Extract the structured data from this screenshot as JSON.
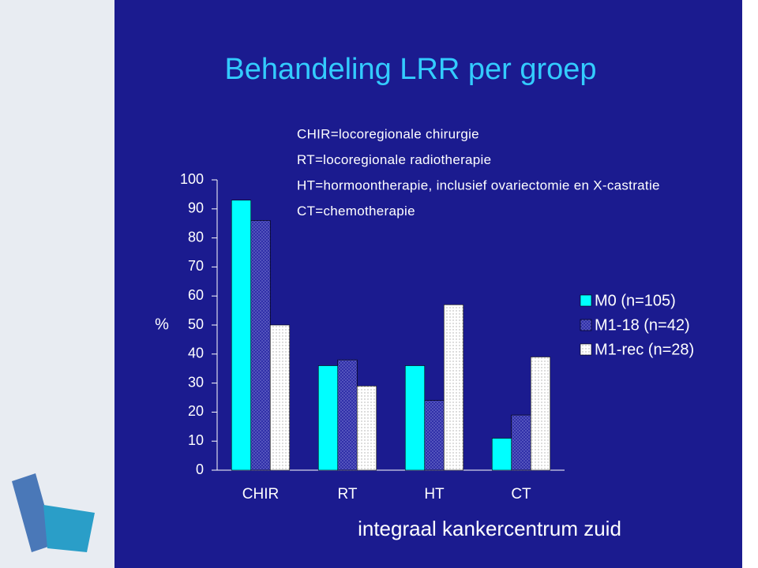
{
  "chart_data": {
    "type": "bar",
    "title": "Behandeling LRR per groep",
    "y_label": "%",
    "categories": [
      "CHIR",
      "RT",
      "HT",
      "CT"
    ],
    "series": [
      {
        "name": "M0 (n=105)",
        "color": "#00ffff",
        "hatch": false,
        "values": [
          93,
          36,
          36,
          11
        ]
      },
      {
        "name": "M1-18 (n=42)",
        "color": "#2b2ba6",
        "hatch": true,
        "values": [
          86,
          38,
          24,
          19
        ]
      },
      {
        "name": "M1-rec (n=28)",
        "color": "#ffffff",
        "hatch": true,
        "values": [
          50,
          29,
          57,
          39
        ]
      }
    ],
    "ylim": [
      0,
      100
    ],
    "yticks": [
      0,
      10,
      20,
      30,
      40,
      50,
      60,
      70,
      80,
      90,
      100
    ],
    "legend": "right",
    "notes": [
      "CHIR=locoregionale chirurgie",
      "RT=locoregionale radiotherapie",
      "HT=hormoontherapie, inclusief ovariectomie en X-castratie",
      "CT=chemotherapie"
    ]
  },
  "footer": "integraal kankercentrum zuid"
}
